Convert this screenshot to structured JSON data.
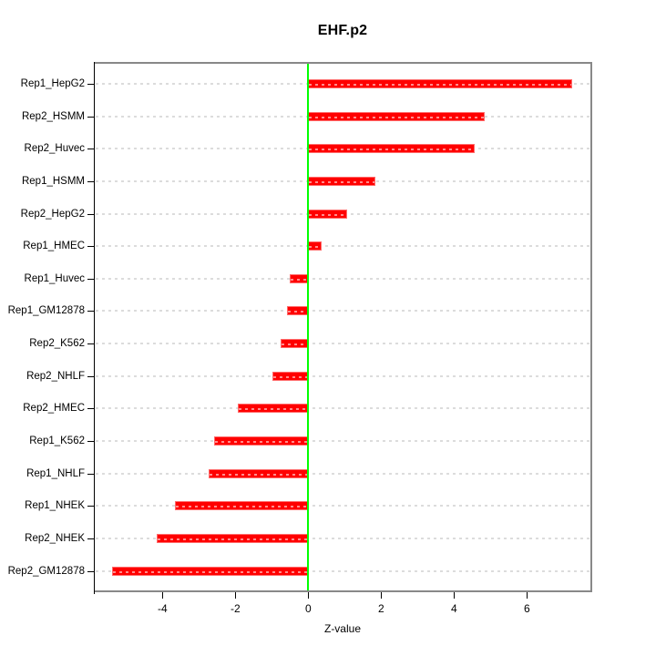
{
  "chart_data": {
    "type": "bar",
    "orientation": "horizontal",
    "title": "EHF.p2",
    "xlabel": "Z-value",
    "categories": [
      "Rep1_HepG2",
      "Rep2_HSMM",
      "Rep2_Huvec",
      "Rep1_HSMM",
      "Rep2_HepG2",
      "Rep1_HMEC",
      "Rep1_Huvec",
      "Rep1_GM12878",
      "Rep2_K562",
      "Rep2_NHLF",
      "Rep2_HMEC",
      "Rep1_K562",
      "Rep1_NHLF",
      "Rep1_NHEK",
      "Rep2_NHEK",
      "Rep2_GM12878"
    ],
    "values": [
      7.25,
      4.83,
      4.56,
      1.85,
      1.06,
      0.36,
      -0.5,
      -0.58,
      -0.75,
      -0.98,
      -1.94,
      -2.58,
      -2.73,
      -3.65,
      -4.16,
      -5.39
    ],
    "xlim": [
      -5.86,
      7.74
    ],
    "xticks": [
      -4,
      -2,
      0,
      2,
      4,
      6
    ],
    "grid": "horizontal-dashed",
    "zero_line_at": 0,
    "legend": "none",
    "colors": {
      "bar_fill": "#ff0000",
      "bar_border": "#ff6b6b",
      "zero_line": "#00ff00",
      "grid_line": "#dcdcdc",
      "box_border": "#888888",
      "axis_line": "#000000",
      "text": "#000000",
      "background": "#ffffff"
    }
  }
}
